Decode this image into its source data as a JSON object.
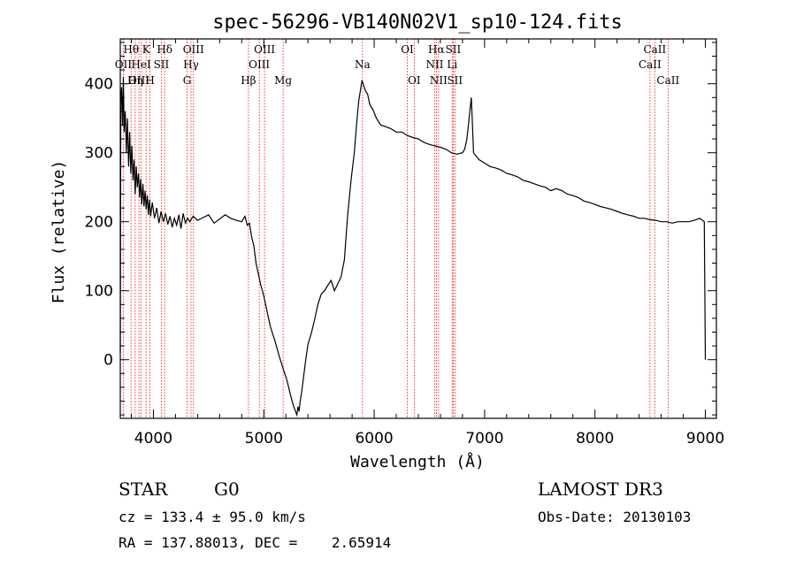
{
  "chart_data": {
    "type": "line",
    "title": "spec-56296-VB140N02V1_sp10-124.fits",
    "xlabel": "Wavelength (Å)",
    "ylabel": "Flux (relative)",
    "xlim": [
      3700,
      9100
    ],
    "ylim": [
      -85,
      465
    ],
    "x_ticks": [
      4000,
      5000,
      6000,
      7000,
      8000,
      9000
    ],
    "x_tick_labels": [
      "4000",
      "5000",
      "6000",
      "7000",
      "8000",
      "9000"
    ],
    "y_ticks": [
      0,
      100,
      200,
      300,
      400
    ],
    "y_tick_labels": [
      "0",
      "100",
      "200",
      "300",
      "400"
    ],
    "line_color": "#ff0000",
    "spectrum_color": "#000000",
    "spectral_lines": [
      {
        "label": "OII",
        "wavelength": 3727,
        "row": 1
      },
      {
        "label": "Hθ",
        "wavelength": 3798,
        "row": 0
      },
      {
        "label": "OIII",
        "wavelength": 3869,
        "row": 2
      },
      {
        "label": "Hη",
        "wavelength": 3835,
        "row": 2
      },
      {
        "label": "HeI",
        "wavelength": 3889,
        "row": 1
      },
      {
        "label": "K",
        "wavelength": 3934,
        "row": 0
      },
      {
        "label": "H",
        "wavelength": 3969,
        "row": 2
      },
      {
        "label": "SII",
        "wavelength": 4072,
        "row": 1
      },
      {
        "label": "Hδ",
        "wavelength": 4102,
        "row": 0
      },
      {
        "label": "G",
        "wavelength": 4305,
        "row": 2
      },
      {
        "label": "Hγ",
        "wavelength": 4341,
        "row": 1
      },
      {
        "label": "OIII",
        "wavelength": 4363,
        "row": 0
      },
      {
        "label": "Hβ",
        "wavelength": 4861,
        "row": 2
      },
      {
        "label": "OIII",
        "wavelength": 4959,
        "row": 1
      },
      {
        "label": "OIII",
        "wavelength": 5007,
        "row": 0
      },
      {
        "label": "Mg",
        "wavelength": 5175,
        "row": 2
      },
      {
        "label": "Na",
        "wavelength": 5894,
        "row": 1
      },
      {
        "label": "OI",
        "wavelength": 6300,
        "row": 0
      },
      {
        "label": "OI",
        "wavelength": 6363,
        "row": 2
      },
      {
        "label": "NII",
        "wavelength": 6548,
        "row": 1
      },
      {
        "label": "Hα",
        "wavelength": 6563,
        "row": 0
      },
      {
        "label": "NII",
        "wavelength": 6583,
        "row": 2
      },
      {
        "label": "Li",
        "wavelength": 6707,
        "row": 1
      },
      {
        "label": "SII",
        "wavelength": 6716,
        "row": 0
      },
      {
        "label": "SII",
        "wavelength": 6731,
        "row": 2
      },
      {
        "label": "CaII",
        "wavelength": 8498,
        "row": 1
      },
      {
        "label": "CaII",
        "wavelength": 8542,
        "row": 0
      },
      {
        "label": "CaII",
        "wavelength": 8662,
        "row": 2
      }
    ],
    "spectrum": {
      "x": [
        3700,
        3705,
        3712,
        3720,
        3728,
        3735,
        3745,
        3755,
        3765,
        3775,
        3785,
        3795,
        3805,
        3815,
        3825,
        3835,
        3845,
        3855,
        3865,
        3875,
        3885,
        3895,
        3905,
        3915,
        3925,
        3935,
        3945,
        3955,
        3965,
        3975,
        3990,
        4010,
        4030,
        4050,
        4070,
        4090,
        4110,
        4130,
        4150,
        4170,
        4190,
        4210,
        4230,
        4250,
        4270,
        4290,
        4310,
        4330,
        4360,
        4400,
        4450,
        4500,
        4550,
        4600,
        4650,
        4700,
        4750,
        4800,
        4830,
        4850,
        4870,
        4890,
        4910,
        4930,
        4950,
        4970,
        5000,
        5030,
        5060,
        5100,
        5140,
        5180,
        5210,
        5240,
        5260,
        5280,
        5300,
        5310,
        5320,
        5330,
        5345,
        5360,
        5380,
        5400,
        5430,
        5460,
        5490,
        5520,
        5550,
        5580,
        5610,
        5640,
        5670,
        5700,
        5730,
        5760,
        5790,
        5820,
        5840,
        5860,
        5880,
        5890,
        5900,
        5920,
        5940,
        5960,
        5990,
        6020,
        6060,
        6100,
        6150,
        6200,
        6250,
        6300,
        6350,
        6400,
        6450,
        6500,
        6550,
        6600,
        6650,
        6700,
        6750,
        6800,
        6820,
        6840,
        6860,
        6880,
        6890,
        6900,
        6950,
        7000,
        7050,
        7100,
        7150,
        7200,
        7250,
        7300,
        7350,
        7400,
        7450,
        7500,
        7550,
        7600,
        7650,
        7700,
        7750,
        7800,
        7850,
        7900,
        7950,
        8000,
        8050,
        8100,
        8150,
        8200,
        8250,
        8300,
        8350,
        8400,
        8450,
        8500,
        8550,
        8600,
        8650,
        8700,
        8750,
        8800,
        8850,
        8900,
        8950,
        8990,
        9000
      ],
      "y": [
        10,
        380,
        395,
        340,
        410,
        330,
        360,
        300,
        350,
        280,
        330,
        270,
        310,
        260,
        290,
        240,
        280,
        250,
        270,
        235,
        262,
        225,
        255,
        222,
        245,
        218,
        238,
        210,
        232,
        208,
        228,
        205,
        220,
        198,
        215,
        200,
        212,
        196,
        208,
        192,
        205,
        195,
        210,
        190,
        212,
        198,
        205,
        200,
        208,
        202,
        206,
        210,
        198,
        204,
        210,
        205,
        202,
        200,
        208,
        195,
        198,
        178,
        165,
        140,
        125,
        110,
        92,
        70,
        48,
        28,
        5,
        -15,
        -30,
        -50,
        -62,
        -72,
        -80,
        -68,
        -75,
        -60,
        -45,
        -25,
        0,
        22,
        38,
        58,
        80,
        95,
        100,
        108,
        115,
        100,
        110,
        120,
        145,
        210,
        260,
        300,
        340,
        375,
        395,
        405,
        400,
        390,
        385,
        370,
        362,
        350,
        340,
        338,
        335,
        330,
        330,
        325,
        322,
        320,
        315,
        312,
        310,
        308,
        305,
        300,
        298,
        300,
        305,
        320,
        350,
        380,
        340,
        300,
        290,
        285,
        280,
        278,
        275,
        270,
        268,
        265,
        260,
        258,
        255,
        252,
        250,
        245,
        248,
        245,
        240,
        238,
        235,
        230,
        228,
        225,
        222,
        220,
        218,
        215,
        212,
        210,
        208,
        205,
        205,
        203,
        202,
        200,
        200,
        198,
        200,
        200,
        200,
        202,
        205,
        200,
        0
      ]
    }
  },
  "info": {
    "object_class": "STAR",
    "subclass": "G0",
    "survey": "LAMOST DR3",
    "redshift": "cz = 133.4 ± 95.0 km/s",
    "obs_date": "Obs-Date: 20130103",
    "coords": "RA = 137.88013, DEC =    2.65914"
  }
}
